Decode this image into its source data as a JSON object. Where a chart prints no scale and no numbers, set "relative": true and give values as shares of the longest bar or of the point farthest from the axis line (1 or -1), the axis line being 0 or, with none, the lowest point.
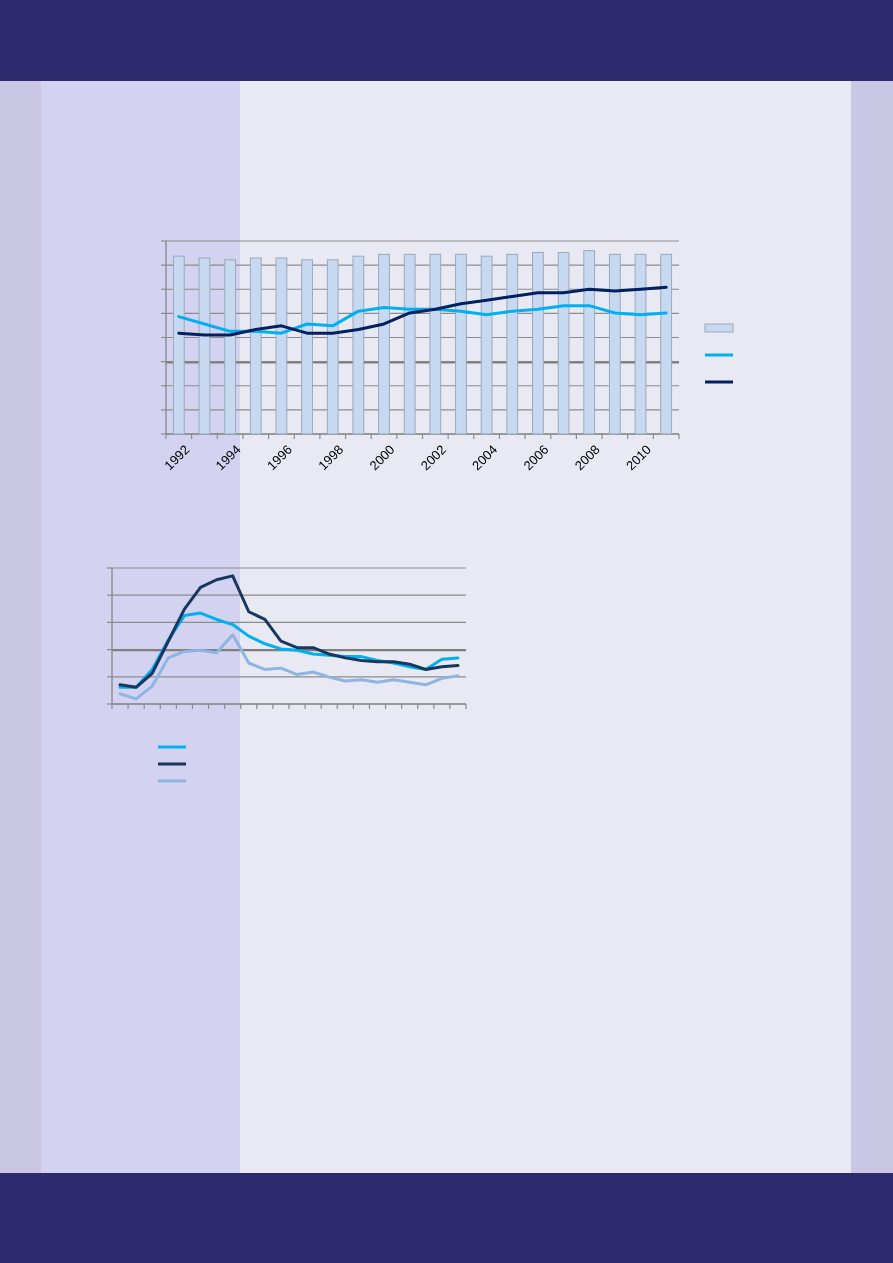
{
  "chart_data": [
    {
      "type": "bar",
      "relative": true,
      "categories": [
        "1992",
        null,
        "1994",
        null,
        "1996",
        null,
        "1998",
        null,
        "2000",
        null,
        "2002",
        null,
        "2004",
        null,
        "2006",
        null,
        "2008",
        null,
        "2010",
        null
      ],
      "series": [
        {
          "color": "#c6d9f1",
          "values": [
            0.97,
            0.96,
            0.95,
            0.96,
            0.96,
            0.95,
            0.95,
            0.97,
            0.98,
            0.98,
            0.98,
            0.98,
            0.97,
            0.98,
            0.99,
            0.99,
            1,
            0.98,
            0.98,
            0.98
          ]
        },
        {
          "type": "line",
          "color": "#00b0f0",
          "values": [
            0.64,
            0.6,
            0.56,
            0.56,
            0.55,
            0.6,
            0.59,
            0.67,
            0.69,
            0.68,
            0.68,
            0.67,
            0.65,
            0.67,
            0.68,
            0.7,
            0.7,
            0.66,
            0.65,
            0.66
          ]
        },
        {
          "type": "line",
          "color": "#002060",
          "values": [
            0.55,
            0.54,
            0.54,
            0.57,
            0.59,
            0.55,
            0.55,
            0.57,
            0.6,
            0.66,
            0.68,
            0.71,
            0.73,
            0.75,
            0.77,
            0.77,
            0.79,
            0.78,
            0.79,
            0.8
          ]
        }
      ],
      "grid": "y",
      "tick_labels": "x",
      "ref_lines": [
        {
          "axis": "y",
          "value": 0.39,
          "color": "#7f7f7f"
        }
      ]
    },
    {
      "type": "line",
      "relative": true,
      "categories": [
        null,
        null,
        null,
        null,
        null,
        null,
        null,
        null,
        null,
        null,
        null,
        null,
        null,
        null,
        null,
        null,
        null,
        null,
        null,
        null,
        null,
        null
      ],
      "series": [
        {
          "color": "#00b0f0",
          "values": [
            0.13,
            0.13,
            0.27,
            0.5,
            0.69,
            0.71,
            0.66,
            0.62,
            0.53,
            0.47,
            0.43,
            0.42,
            0.39,
            0.38,
            0.37,
            0.37,
            0.34,
            0.32,
            0.29,
            0.27,
            0.35,
            0.36
          ]
        },
        {
          "color": "#17375e",
          "values": [
            0.15,
            0.13,
            0.24,
            0.49,
            0.74,
            0.91,
            0.97,
            1,
            0.72,
            0.66,
            0.49,
            0.44,
            0.44,
            0.39,
            0.36,
            0.34,
            0.33,
            0.33,
            0.31,
            0.27,
            0.29,
            0.3
          ]
        },
        {
          "color": "#8eb4e3",
          "values": [
            0.08,
            0.04,
            0.14,
            0.36,
            0.41,
            0.42,
            0.4,
            0.54,
            0.32,
            0.27,
            0.28,
            0.23,
            0.25,
            0.21,
            0.18,
            0.19,
            0.17,
            0.19,
            0.17,
            0.15,
            0.2,
            0.22
          ]
        }
      ],
      "grid": "y",
      "tick_labels": false,
      "ref_lines": [
        {
          "axis": "y",
          "value": 0.42,
          "color": "#7f7f7f"
        }
      ]
    }
  ]
}
